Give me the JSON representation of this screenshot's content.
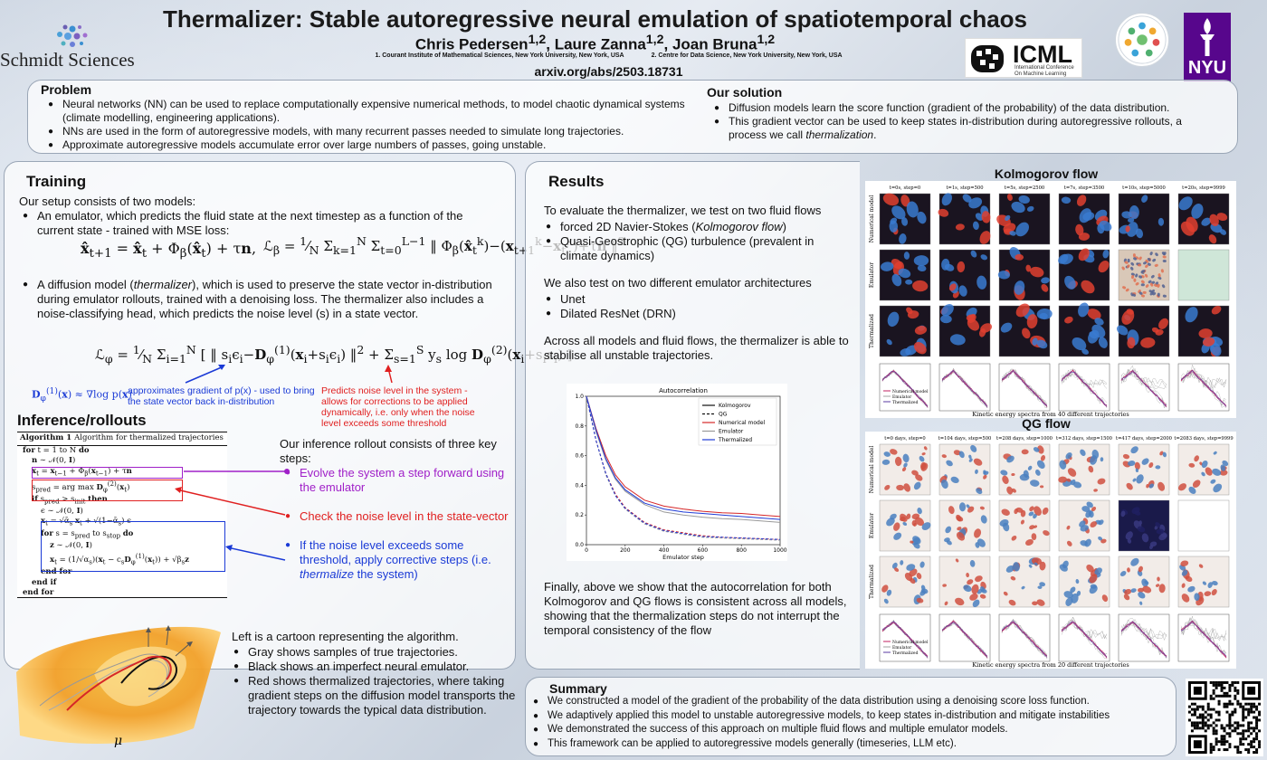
{
  "header": {
    "title": "Thermalizer: Stable autoregressive neural emulation of spatiotemporal chaos",
    "authors": [
      {
        "name": "Chris Pedersen",
        "sup": "1,2"
      },
      {
        "name": "Laure Zanna",
        "sup": "1,2"
      },
      {
        "name": "Joan Bruna",
        "sup": "1,2"
      }
    ],
    "affiliation_1": "1.  Courant Institute of Mathematical Sciences, New York University, New York, USA",
    "affiliation_2": "2. Centre for Data Science, New York University, New York, USA",
    "arxiv": "arxiv.org/abs/2503.18731",
    "logos": {
      "left": "Schmidt Sciences",
      "icml": "ICML",
      "icml_sub": [
        "International Conference",
        "On Machine Learning"
      ],
      "nyu": "NYU"
    },
    "colors": {
      "nyu": "#57068c"
    }
  },
  "problem": {
    "title": "Problem",
    "items": [
      "Neural networks (NN) can be used to replace computationally expensive numerical methods, to model chaotic dynamical systems (climate modelling, engineering applications).",
      "NNs are used in the form of autoregressive models, with many recurrent passes needed to simulate long trajectories.",
      "Approximate autoregressive models accumulate error over large numbers of passes, going unstable."
    ]
  },
  "solution": {
    "title": "Our solution",
    "item1": "Diffusion models learn the score function (gradient of the probability) of the data distribution.",
    "item2_pre": "This gradient vector can be used to keep states in-distribution during autoregressive rollouts, a process we call ",
    "item2_em": "thermalization",
    "item2_post": "."
  },
  "training": {
    "title": "Training",
    "intro": "Our setup consists of two models:",
    "item1": "An emulator, which predicts the fluid state at the next timestep as a function of the current state - trained with MSE loss:",
    "item2_pre": "A diffusion model (",
    "item2_em": "thermalizer",
    "item2_post": "), which is used to preserve the state vector in-distribution during emulator rollouts, trained with a denoising loss. The thermalizer also includes a noise-classifying head, which predicts the noise level (s) in a state vector.",
    "ann_blue": "approximates gradient of p(x) - used to bring the state vector back in-distribution",
    "ann_red": "Predicts noise level in the system - allows for corrections to be applied dynamically, i.e. only when the noise level exceeds some threshold",
    "colors": {
      "blue": "#1a3ad6",
      "red": "#e02020",
      "purple": "#a020c8"
    }
  },
  "inference": {
    "title": "Inference/rollouts",
    "algo_caption_bold": "Algorithm 1",
    "algo_caption": "Algorithm for thermalized trajectories",
    "steps_intro": "Our inference rollout consists of three  key steps:",
    "step1": "Evolve the system a step forward using the emulator",
    "step2": "Check the noise level in the state-vector",
    "step3_pre": "If the noise level exceeds some threshold, apply corrective steps (i.e. ",
    "step3_em": "thermalize",
    "step3_post": " the system)"
  },
  "cartoon": {
    "intro": "Left is a cartoon representing the algorithm.",
    "items": [
      "Gray shows samples of true trajectories.",
      "Black shows an imperfect neural emulator.",
      "Red shows thermalized trajectories, where taking gradient steps on the diffusion model transports the trajectory towards the typical data distribution."
    ],
    "mu": "μ"
  },
  "results": {
    "title": "Results",
    "intro": "To evaluate the thermalizer, we test on two fluid flows",
    "flow1_pre": "forced 2D Navier-Stokes (",
    "flow1_em": "Kolmogorov flow",
    "flow1_post": ")",
    "flow2": "Quasi-Geostrophic (QG)  turbulence (prevalent in climate dynamics)",
    "arch_intro": "We also test on two different emulator architectures",
    "arch1": "Unet",
    "arch2": "Dilated ResNet (DRN)",
    "stabilise": "Across all models and fluid flows, the thermalizer is able to stabilise all unstable trajectories.",
    "final": "Finally, above we show that the autocorrelation for both Kolmogorov and QG flows is consistent across all models, showing that the thermalization steps do not interrupt the temporal consistency of the flow"
  },
  "chart_data": {
    "type": "line",
    "title": "Autocorrelation",
    "xlabel": "Emulator step",
    "ylabel": "",
    "xlim": [
      0,
      1000
    ],
    "ylim": [
      0,
      1.0
    ],
    "xticks": [
      0,
      200,
      400,
      600,
      800,
      1000
    ],
    "yticks": [
      0.0,
      0.2,
      0.4,
      0.6,
      0.8,
      1.0
    ],
    "legend_position": "top-right",
    "legend": [
      {
        "name": "Kolmogorov",
        "color": "#111111",
        "dash": "solid"
      },
      {
        "name": "QG",
        "color": "#111111",
        "dash": "dashed"
      },
      {
        "name": "Numerical model",
        "color": "#d62728",
        "dash": "solid"
      },
      {
        "name": "Emulator",
        "color": "#999999",
        "dash": "solid"
      },
      {
        "name": "Thermalized",
        "color": "#1f3bd6",
        "dash": "solid"
      }
    ],
    "x": [
      0,
      50,
      100,
      150,
      200,
      300,
      400,
      500,
      600,
      700,
      800,
      900,
      1000
    ],
    "series": [
      {
        "flow": "Kolmogorov",
        "model": "Numerical model",
        "color": "#d62728",
        "dash": "solid",
        "values": [
          1.0,
          0.78,
          0.6,
          0.47,
          0.39,
          0.3,
          0.26,
          0.24,
          0.225,
          0.215,
          0.21,
          0.2,
          0.19
        ]
      },
      {
        "flow": "Kolmogorov",
        "model": "Emulator",
        "color": "#999999",
        "dash": "solid",
        "values": [
          1.0,
          0.76,
          0.57,
          0.44,
          0.36,
          0.27,
          0.22,
          0.2,
          0.185,
          0.175,
          0.17,
          0.16,
          0.15
        ]
      },
      {
        "flow": "Kolmogorov",
        "model": "Thermalized",
        "color": "#1f3bd6",
        "dash": "solid",
        "values": [
          1.0,
          0.77,
          0.58,
          0.45,
          0.37,
          0.28,
          0.24,
          0.22,
          0.21,
          0.2,
          0.19,
          0.18,
          0.17
        ]
      },
      {
        "flow": "QG",
        "model": "Numerical model",
        "color": "#d62728",
        "dash": "dashed",
        "values": [
          1.0,
          0.7,
          0.48,
          0.34,
          0.25,
          0.15,
          0.1,
          0.08,
          0.06,
          0.05,
          0.045,
          0.04,
          0.035
        ]
      },
      {
        "flow": "QG",
        "model": "Emulator",
        "color": "#999999",
        "dash": "dashed",
        "values": [
          1.0,
          0.7,
          0.47,
          0.33,
          0.24,
          0.14,
          0.09,
          0.07,
          0.05,
          0.045,
          0.04,
          0.035,
          0.03
        ]
      },
      {
        "flow": "QG",
        "model": "Thermalized",
        "color": "#1f3bd6",
        "dash": "dashed",
        "values": [
          1.0,
          0.7,
          0.48,
          0.33,
          0.245,
          0.145,
          0.095,
          0.075,
          0.055,
          0.05,
          0.045,
          0.04,
          0.035
        ]
      }
    ]
  },
  "kolmogorov_figure": {
    "title": "Kolmogorov flow",
    "columns": [
      "t=0s, step=0",
      "t=1s, step=500",
      "t=5s, step=2500",
      "t=7s, step=3500",
      "t=10s, step=5000",
      "t=20s, step=9999"
    ],
    "rows": [
      "Numerical model",
      "Emulator",
      "Thermalized"
    ],
    "caption": "Kinetic energy spectra from 40 different trajectories",
    "legend": [
      "Numerical model",
      "Emulator",
      "Thermalized"
    ]
  },
  "qg_figure": {
    "title": "QG flow",
    "columns": [
      "t=0 days, step=0",
      "t=104 days, step=500",
      "t=208 days, step=1000",
      "t=312 days, step=1500",
      "t=417 days, step=2000",
      "t=2083 days, step=9999"
    ],
    "rows": [
      "Numerical model",
      "Emulator",
      "Thermalized"
    ],
    "caption": "Kinetic energy spectra from 20 different trajectories",
    "legend": [
      "Numerical model",
      "Emulator",
      "Thermalized"
    ]
  },
  "summary": {
    "title": "Summary",
    "items": [
      "We constructed a model of the gradient of the probability of the data distribution using a denoising score loss function.",
      "We adaptively applied this model to unstable autoregressive models, to keep states in-distribution and mitigate instabilities",
      "We demonstrated the success of this  approach on multiple fluid flows and multiple emulator models.",
      "This framework can be applied to autoregressive models generally (timeseries, LLM etc)."
    ]
  }
}
